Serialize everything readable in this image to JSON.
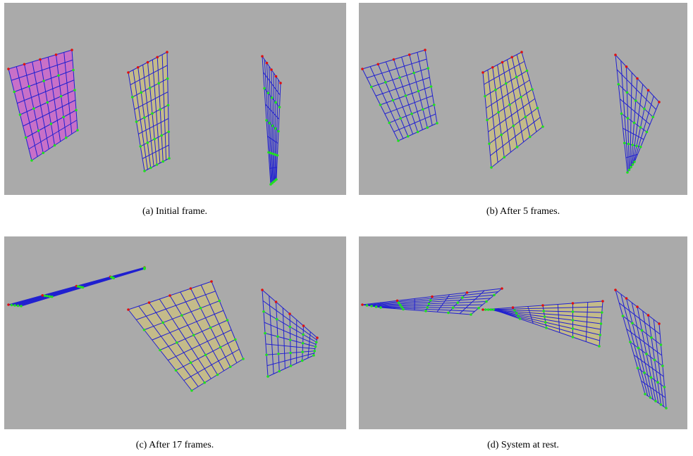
{
  "figure": {
    "panels": [
      {
        "caption": "(a) Initial frame."
      },
      {
        "caption": "(b) After 5 frames."
      },
      {
        "caption": "(c) After 17 frames."
      },
      {
        "caption": "(d) System at rest."
      }
    ]
  }
}
